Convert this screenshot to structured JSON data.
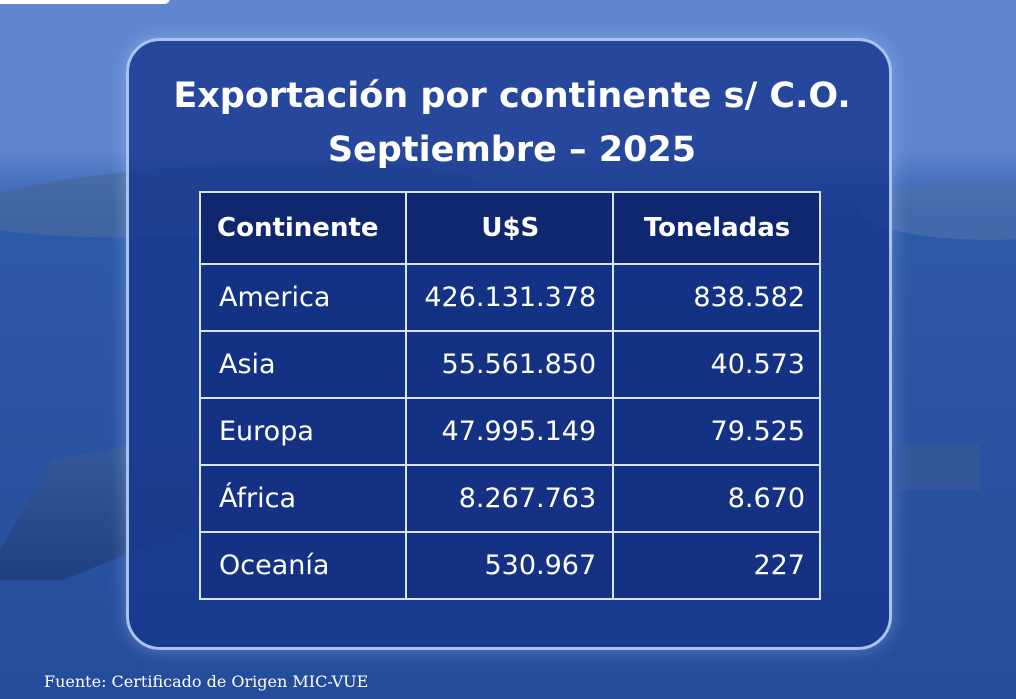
{
  "title": {
    "line1": "Exportación por continente s/ C.O.",
    "line2": "Septiembre – 2025"
  },
  "table": {
    "headers": [
      "Continente",
      "U$S",
      "Toneladas"
    ],
    "rows": [
      {
        "continent": "America",
        "usd": "426.131.378",
        "tons": "838.582"
      },
      {
        "continent": "Asia",
        "usd": "55.561.850",
        "tons": "40.573"
      },
      {
        "continent": "Europa",
        "usd": "47.995.149",
        "tons": "79.525"
      },
      {
        "continent": "África",
        "usd": "8.267.763",
        "tons": "8.670"
      },
      {
        "continent": "Oceanía",
        "usd": "530.967",
        "tons": "227"
      }
    ]
  },
  "source": "Fuente: Certificado de Origen MIC-VUE",
  "colors": {
    "panel_fill": "#16368c",
    "panel_border": "#a9c2f0",
    "background": "#2e5cae",
    "text": "#ffffff"
  }
}
